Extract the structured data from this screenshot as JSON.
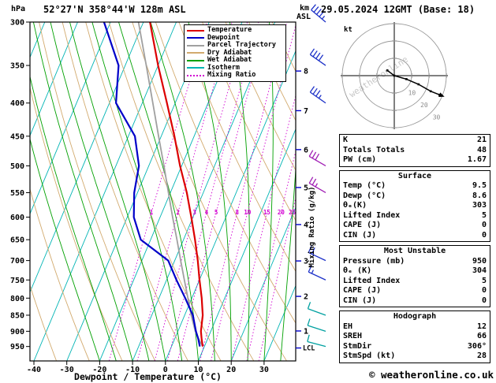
{
  "header": {
    "left_unit": "hPa",
    "station": "52°27'N 358°44'W 128m ASL",
    "datetime": "29.05.2024 12GMT (Base: 18)",
    "km_label": "km",
    "asl_label": "ASL"
  },
  "legend": [
    {
      "label": "Temperature",
      "color": "#dc0000",
      "style": "solid"
    },
    {
      "label": "Dewpoint",
      "color": "#0000c8",
      "style": "solid"
    },
    {
      "label": "Parcel Trajectory",
      "color": "#a0a0a0",
      "style": "solid"
    },
    {
      "label": "Dry Adiabat",
      "color": "#d2aa6e",
      "style": "solid"
    },
    {
      "label": "Wet Adiabat",
      "color": "#00a000",
      "style": "solid"
    },
    {
      "label": "Isotherm",
      "color": "#00b4b4",
      "style": "solid"
    },
    {
      "label": "Mixing Ratio",
      "color": "#d200d2",
      "style": "dotted"
    }
  ],
  "colors": {
    "temperature": "#dc0000",
    "dewpoint": "#0000c8",
    "parcel": "#a0a0a0",
    "dry_adiabat": "#d2aa6e",
    "wet_adiabat": "#00a000",
    "isotherm": "#00b4b4",
    "mixing_ratio": "#d200d2",
    "km_tick": "#0000cc"
  },
  "axes": {
    "pressure_ticks": [
      300,
      350,
      400,
      450,
      500,
      550,
      600,
      650,
      700,
      750,
      800,
      850,
      900,
      950
    ],
    "temp_ticks": [
      -40,
      -30,
      -20,
      -10,
      0,
      10,
      20,
      30
    ],
    "xlabel": "Dewpoint / Temperature (°C)",
    "mixing_ratio_label": "Mixing Ratio (g/kg)",
    "mixing_ratio_values": [
      1,
      2,
      3,
      4,
      5,
      8,
      10,
      15,
      20,
      25
    ],
    "km_levels": [
      [
        1,
        899
      ],
      [
        2,
        795
      ],
      [
        3,
        701
      ],
      [
        4,
        616
      ],
      [
        5,
        540
      ],
      [
        6,
        472
      ],
      [
        7,
        411
      ],
      [
        8,
        357
      ]
    ],
    "lcl_label": "LCL",
    "lcl_pressure": 955
  },
  "chart_data": {
    "type": "line",
    "title": "Skew-T log-P sounding",
    "y_axis": {
      "label": "hPa",
      "scale": "log",
      "range": [
        300,
        1000
      ]
    },
    "x_axis": {
      "label": "Dewpoint / Temperature (°C)",
      "surface_ticks": [
        -40,
        30
      ]
    },
    "pressure_hPa": [
      950,
      925,
      900,
      850,
      800,
      750,
      700,
      650,
      600,
      550,
      500,
      450,
      400,
      350,
      300
    ],
    "series": [
      {
        "name": "Temperature",
        "values": [
          9.5,
          8.2,
          7.0,
          5.5,
          3.0,
          0.0,
          -3.0,
          -6.5,
          -10.5,
          -15.0,
          -20.5,
          -26.0,
          -32.5,
          -40.0,
          -48.0
        ]
      },
      {
        "name": "Dewpoint",
        "values": [
          8.6,
          7.2,
          5.5,
          2.5,
          -2.0,
          -7.0,
          -12.0,
          -23.0,
          -28.0,
          -31.0,
          -33.0,
          -38.0,
          -48.0,
          -52.0,
          -62.0
        ]
      },
      {
        "name": "Parcel Trajectory",
        "values": [
          9.5,
          7.3,
          5.3,
          2.0,
          -1.2,
          -4.6,
          -8.2,
          -12.0,
          -16.2,
          -20.6,
          -25.4,
          -30.8,
          -36.8,
          -43.6,
          -51.5
        ]
      }
    ]
  },
  "wind_barbs": [
    {
      "p": 300,
      "spd": 45,
      "dir": 310,
      "color": "#1e32c8"
    },
    {
      "p": 350,
      "spd": 40,
      "dir": 305,
      "color": "#1e32c8"
    },
    {
      "p": 400,
      "spd": 35,
      "dir": 305,
      "color": "#1e32c8"
    },
    {
      "p": 500,
      "spd": 30,
      "dir": 300,
      "color": "#a01eb4"
    },
    {
      "p": 550,
      "spd": 25,
      "dir": 300,
      "color": "#a01eb4"
    },
    {
      "p": 700,
      "spd": 20,
      "dir": 295,
      "color": "#1e32c8"
    },
    {
      "p": 750,
      "spd": 15,
      "dir": 295,
      "color": "#1e32c8"
    },
    {
      "p": 850,
      "spd": 10,
      "dir": 290,
      "color": "#00a0a0"
    },
    {
      "p": 900,
      "spd": 10,
      "dir": 288,
      "color": "#00a0a0"
    },
    {
      "p": 950,
      "spd": 10,
      "dir": 285,
      "color": "#00a0a0"
    }
  ],
  "hodograph": {
    "unit": "kt",
    "rings": [
      10,
      20,
      30
    ],
    "watermark": "weatheronline",
    "trace_kt": [
      [
        -4,
        -3
      ],
      [
        0,
        0
      ],
      [
        7,
        2
      ],
      [
        14,
        5
      ],
      [
        21,
        9
      ],
      [
        26,
        11
      ]
    ]
  },
  "table": {
    "sections": [
      {
        "header": null,
        "rows": [
          [
            "K",
            "21"
          ],
          [
            "Totals Totals",
            "48"
          ],
          [
            "PW (cm)",
            "1.67"
          ]
        ]
      },
      {
        "header": "Surface",
        "rows": [
          [
            "Temp (°C)",
            "9.5"
          ],
          [
            "Dewp (°C)",
            "8.6"
          ],
          [
            "θₑ(K)",
            "303"
          ],
          [
            "Lifted Index",
            "5"
          ],
          [
            "CAPE (J)",
            "0"
          ],
          [
            "CIN (J)",
            "0"
          ]
        ]
      },
      {
        "header": "Most Unstable",
        "rows": [
          [
            "Pressure (mb)",
            "950"
          ],
          [
            "θₑ (K)",
            "304"
          ],
          [
            "Lifted Index",
            "5"
          ],
          [
            "CAPE (J)",
            "0"
          ],
          [
            "CIN (J)",
            "0"
          ]
        ]
      },
      {
        "header": "Hodograph",
        "rows": [
          [
            "EH",
            "12"
          ],
          [
            "SREH",
            "66"
          ],
          [
            "StmDir",
            "306°"
          ],
          [
            "StmSpd (kt)",
            "28"
          ]
        ]
      }
    ]
  },
  "footer": {
    "copyright": "© weatheronline.co.uk"
  }
}
